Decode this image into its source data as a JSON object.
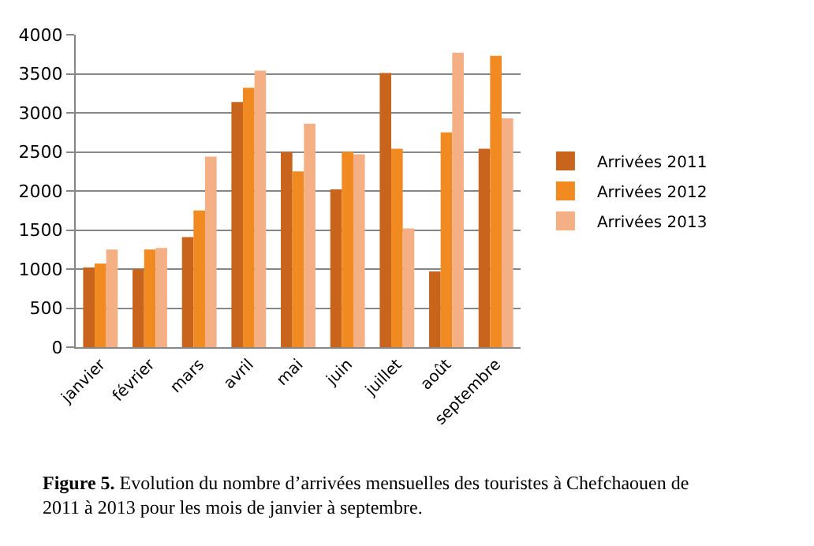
{
  "chart_data": {
    "type": "bar",
    "categories": [
      "janvier",
      "février",
      "mars",
      "avril",
      "mai",
      "juin",
      "juillet",
      "août",
      "septembre"
    ],
    "series": [
      {
        "name": "Arrivées 2011",
        "color": "#c8641c",
        "values": [
          1020,
          1000,
          1410,
          3140,
          2500,
          2020,
          3510,
          970,
          2540
        ]
      },
      {
        "name": "Arrivées 2012",
        "color": "#f28a22",
        "values": [
          1070,
          1250,
          1750,
          3320,
          2250,
          2500,
          2540,
          2750,
          3730
        ]
      },
      {
        "name": "Arrivées 2013",
        "color": "#f4b084",
        "values": [
          1250,
          1270,
          2440,
          3540,
          2860,
          2470,
          1520,
          3770,
          2930
        ]
      }
    ],
    "ylim": [
      0,
      4000
    ],
    "yticks": [
      0,
      500,
      1000,
      1500,
      2000,
      2500,
      3000,
      3500,
      4000
    ],
    "grid": "y",
    "legend": "right",
    "annotations": [
      "Figure 5.",
      "Evolution du nombre d’arrivées mensuelles des touristes à Chefchaouen de 2011 à 2013 pour les mois de janvier à septembre."
    ]
  }
}
